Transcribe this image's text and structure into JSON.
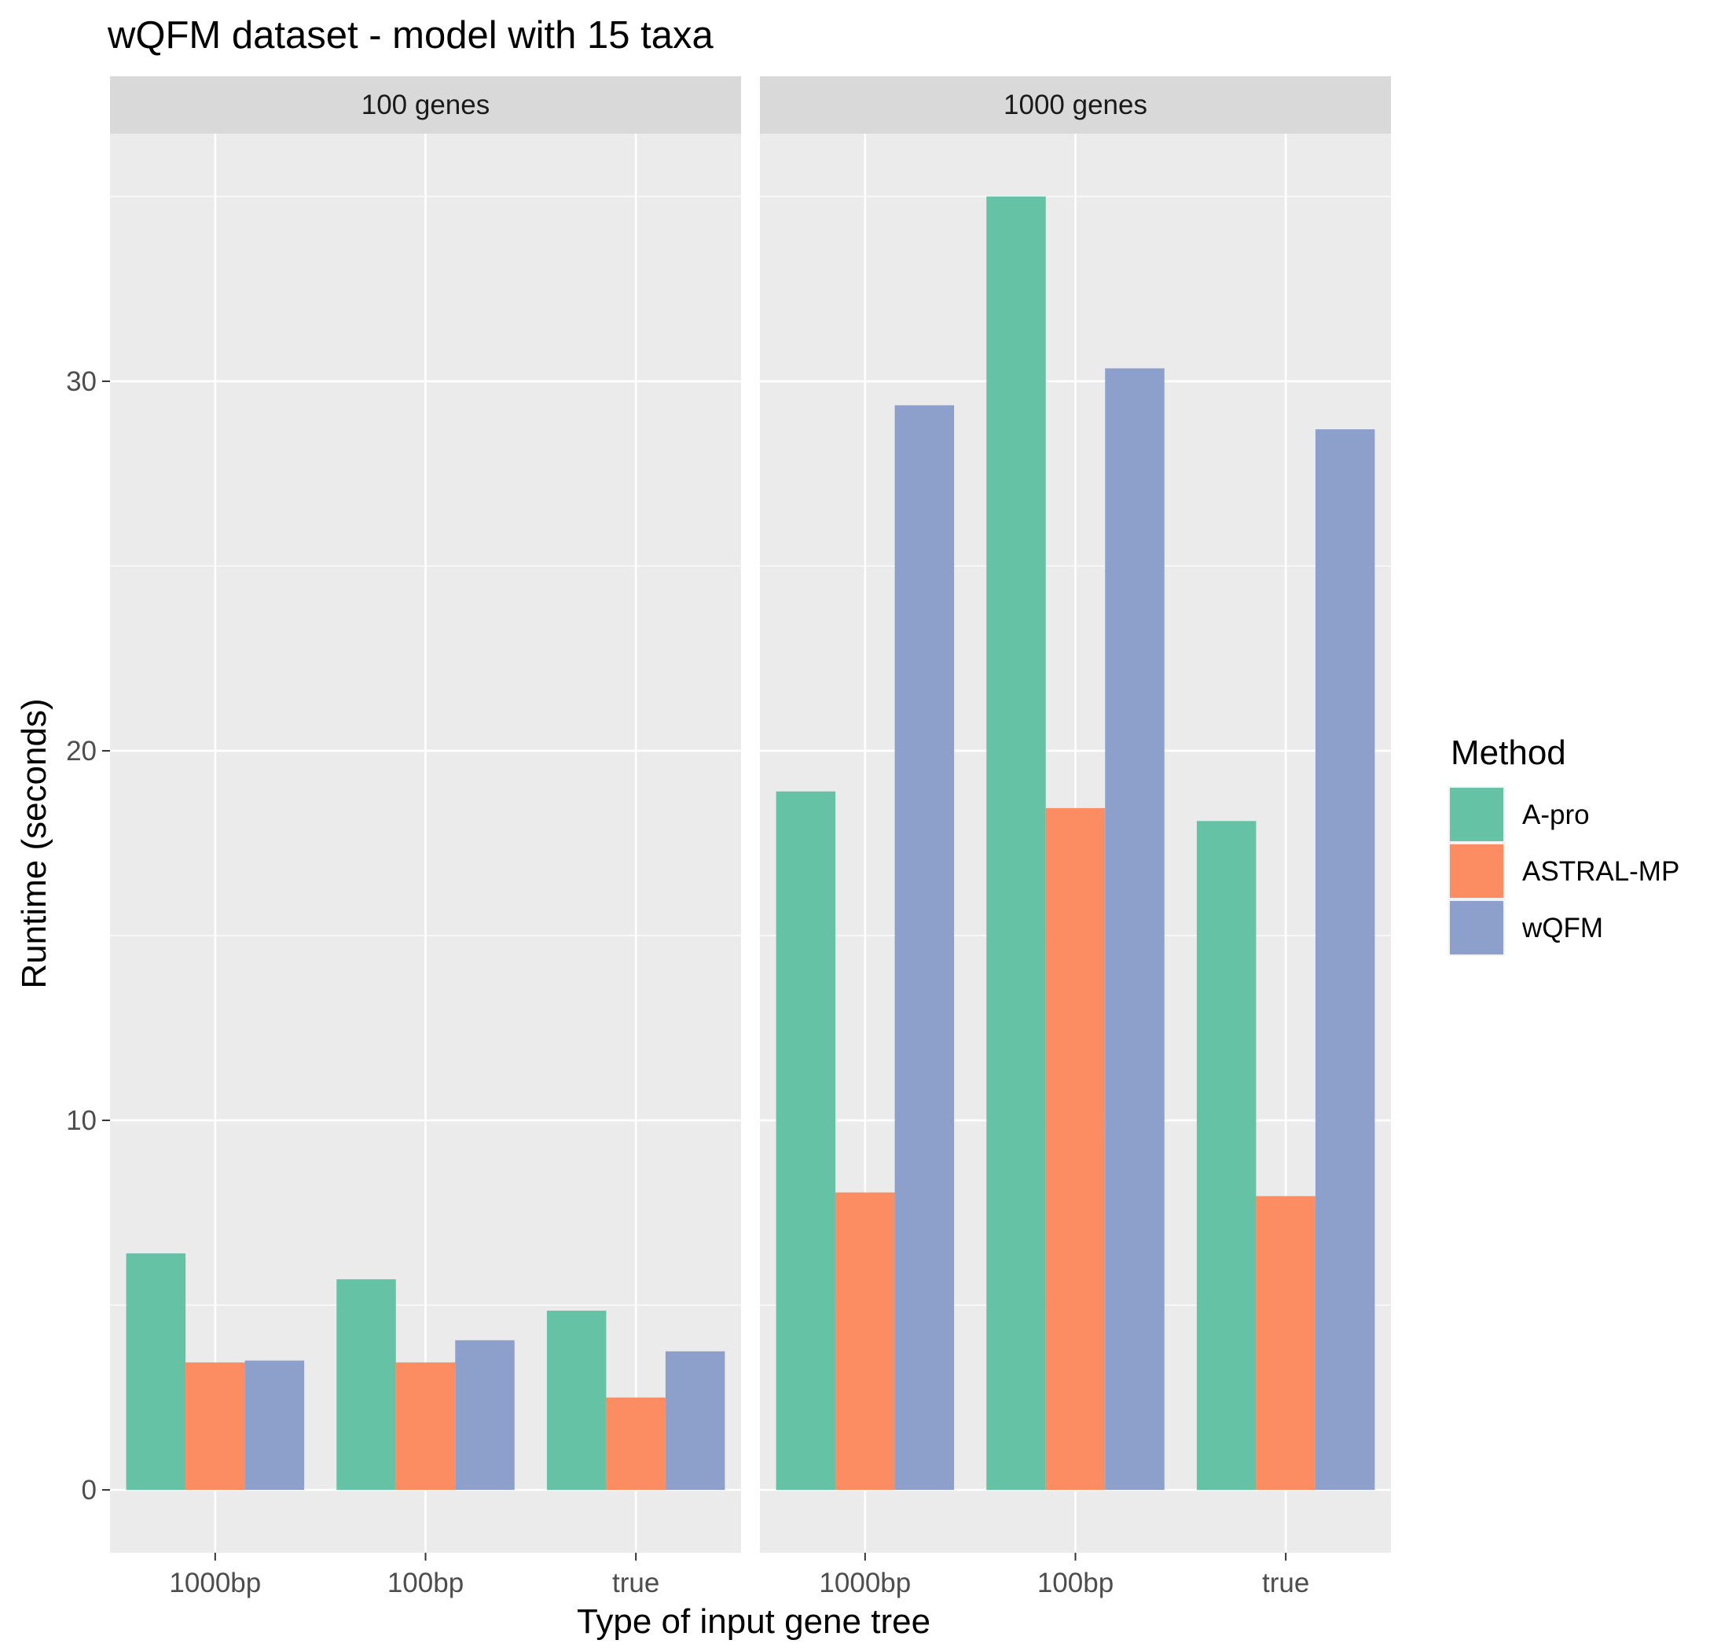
{
  "chart_data": {
    "type": "bar",
    "title": "wQFM dataset - model with 15 taxa",
    "xlabel": "Type of input gene tree",
    "ylabel": "Runtime (seconds)",
    "ylim": [
      -1.7,
      36.7
    ],
    "yticks": [
      0,
      10,
      20,
      30
    ],
    "grid": true,
    "legend_position": "right",
    "legend_title": "Method",
    "categories": [
      "1000bp",
      "100bp",
      "true"
    ],
    "series": [
      {
        "name": "A-pro",
        "color": "#66c2a5"
      },
      {
        "name": "ASTRAL-MP",
        "color": "#fc8d62"
      },
      {
        "name": "wQFM",
        "color": "#8da0cb"
      }
    ],
    "panels": [
      {
        "label": "100 genes",
        "values": [
          [
            6.4,
            5.7,
            4.85
          ],
          [
            3.45,
            3.45,
            2.5
          ],
          [
            3.5,
            4.05,
            3.75
          ]
        ]
      },
      {
        "label": "1000 genes",
        "values": [
          [
            18.9,
            35.0,
            18.1
          ],
          [
            8.05,
            18.45,
            7.95
          ],
          [
            29.35,
            30.35,
            28.7
          ]
        ]
      }
    ]
  }
}
